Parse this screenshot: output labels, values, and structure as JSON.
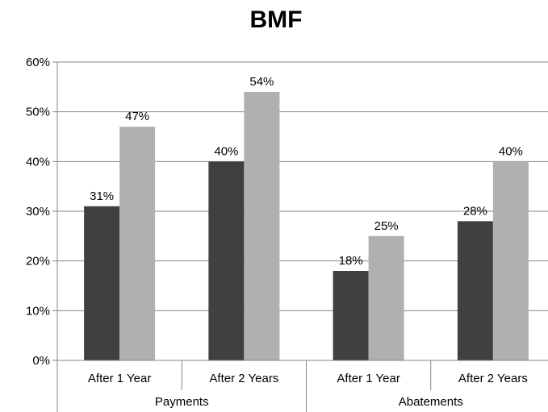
{
  "chart_data": {
    "type": "bar",
    "title": "BMF",
    "xlabel": "",
    "ylabel": "",
    "ylim": [
      0,
      60
    ],
    "yticks": [
      "0%",
      "10%",
      "20%",
      "30%",
      "40%",
      "50%",
      "60%"
    ],
    "grid": true,
    "legend": "none",
    "groups": [
      {
        "label": "Payments",
        "categories": [
          "After 1 Year",
          "After 2 Years"
        ]
      },
      {
        "label": "Abatements",
        "categories": [
          "After 1 Year",
          "After 2 Years"
        ]
      }
    ],
    "series": [
      {
        "color": "#404040",
        "values": [
          31,
          40,
          18,
          28
        ],
        "labels": [
          "31%",
          "40%",
          "18%",
          "28%"
        ]
      },
      {
        "color": "#b0b0b0",
        "values": [
          47,
          54,
          25,
          40
        ],
        "labels": [
          "47%",
          "54%",
          "25%",
          "40%"
        ]
      }
    ]
  }
}
